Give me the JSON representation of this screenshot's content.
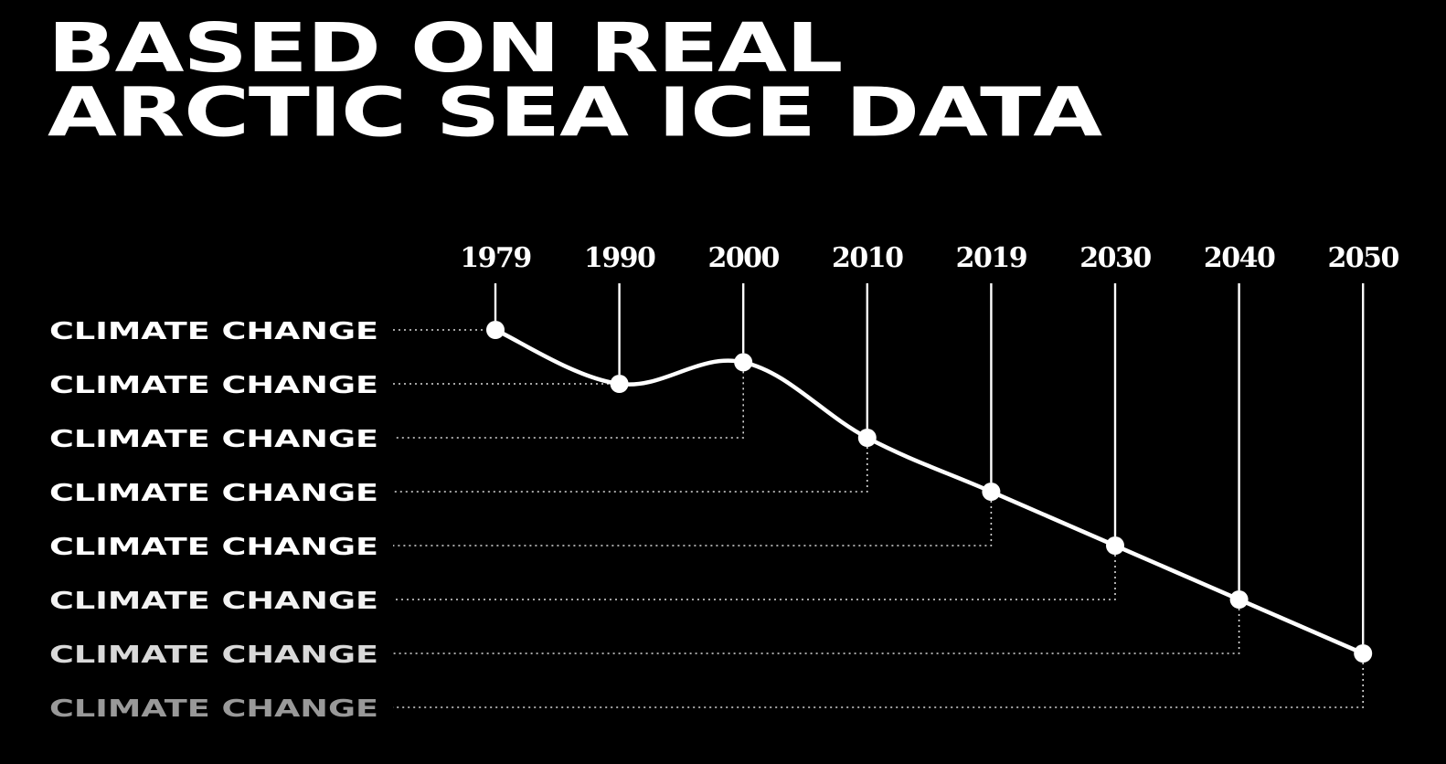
{
  "headline": {
    "line1": "BASED ON REAL",
    "line2": "ARCTIC SEA ICE DATA"
  },
  "colors": {
    "background": "#000000",
    "foreground": "#ffffff"
  },
  "chart_data": {
    "type": "line",
    "x": [
      "1979",
      "1990",
      "2000",
      "2010",
      "2019",
      "2030",
      "2040",
      "2050"
    ],
    "values": [
      1,
      2,
      1.6,
      3,
      4,
      5,
      6,
      7
    ],
    "row_labels": [
      "CLIMATE CHANGE",
      "CLIMATE CHANGE",
      "CLIMATE CHANGE",
      "CLIMATE CHANGE",
      "CLIMATE CHANGE",
      "CLIMATE CHANGE",
      "CLIMATE CHANGE",
      "CLIMATE CHANGE"
    ],
    "row_label_fade": [
      1,
      1,
      1,
      1,
      1,
      0.95,
      0.85,
      0.6
    ],
    "guide_links": [
      {
        "from_point": 0,
        "to_row": 0
      },
      {
        "from_point": 1,
        "to_row": 1
      },
      {
        "from_point": 2,
        "to_row": 2
      },
      {
        "from_point": 3,
        "to_row": 3
      },
      {
        "from_point": 4,
        "to_row": 4
      },
      {
        "from_point": 5,
        "to_row": 5
      },
      {
        "from_point": 6,
        "to_row": 6
      },
      {
        "from_point": 7,
        "to_row": 7
      }
    ],
    "grid": false,
    "legend": "none"
  }
}
